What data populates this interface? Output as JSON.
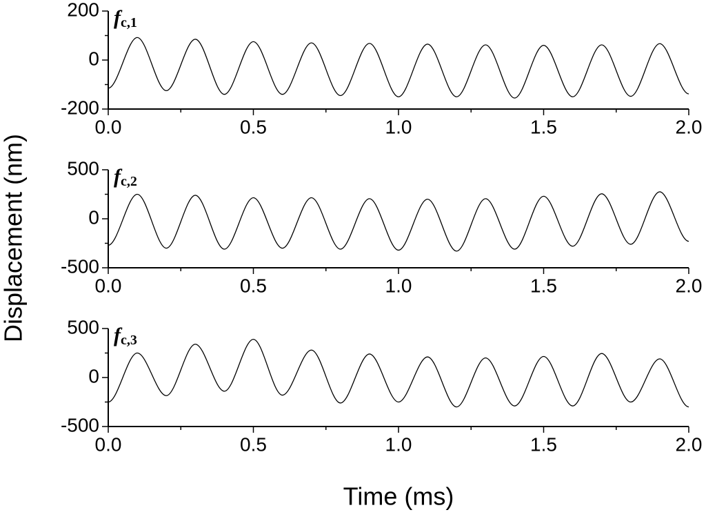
{
  "ylabel": "Displacement (nm)",
  "xlabel": "Time (ms)",
  "chart_data": [
    {
      "type": "line",
      "annotation": {
        "text": "f",
        "subscript": "c,1"
      },
      "x": [
        0,
        0.1,
        0.2,
        0.3,
        0.4,
        0.5,
        0.6,
        0.7,
        0.8,
        0.9,
        1.0,
        1.1,
        1.2,
        1.3,
        1.4,
        1.5,
        1.6,
        1.7,
        1.8,
        1.9,
        2.0
      ],
      "series": [
        {
          "color": "#000000",
          "values": [
            -115,
            92,
            -125,
            85,
            -140,
            75,
            -140,
            70,
            -145,
            68,
            -150,
            65,
            -150,
            62,
            -155,
            60,
            -150,
            62,
            -148,
            67,
            -138
          ]
        }
      ],
      "xlim": [
        0,
        2
      ],
      "xticks": [
        {
          "value": 0,
          "label": "0.0"
        },
        0.5,
        {
          "value": 1,
          "label": "1.0"
        },
        1.5,
        {
          "value": 2,
          "label": "2.0"
        }
      ],
      "ylim": [
        -200,
        200
      ],
      "yticks": [
        -200,
        0,
        200
      ]
    },
    {
      "type": "line",
      "annotation": {
        "text": "f",
        "subscript": "c,2"
      },
      "x": [
        0,
        0.1,
        0.2,
        0.3,
        0.4,
        0.5,
        0.6,
        0.7,
        0.8,
        0.9,
        1.0,
        1.1,
        1.2,
        1.3,
        1.4,
        1.5,
        1.6,
        1.7,
        1.8,
        1.9,
        2.0
      ],
      "series": [
        {
          "color": "#000000",
          "values": [
            -270,
            250,
            -300,
            240,
            -310,
            215,
            -300,
            215,
            -310,
            205,
            -320,
            200,
            -330,
            205,
            -310,
            230,
            -280,
            255,
            -260,
            275,
            -230
          ]
        }
      ],
      "xlim": [
        0,
        2
      ],
      "xticks": [
        {
          "value": 0,
          "label": "0.0"
        },
        0.5,
        {
          "value": 1,
          "label": "1.0"
        },
        1.5,
        {
          "value": 2,
          "label": "2.0"
        }
      ],
      "ylim": [
        -500,
        500
      ],
      "yticks": [
        -500,
        0,
        500
      ]
    },
    {
      "type": "line",
      "annotation": {
        "text": "f",
        "subscript": "c,3"
      },
      "x": [
        0,
        0.1,
        0.2,
        0.3,
        0.4,
        0.5,
        0.6,
        0.7,
        0.8,
        0.9,
        1.0,
        1.1,
        1.2,
        1.3,
        1.4,
        1.5,
        1.6,
        1.7,
        1.8,
        1.9,
        2.0
      ],
      "series": [
        {
          "color": "#000000",
          "values": [
            -250,
            250,
            -185,
            340,
            -140,
            390,
            -180,
            280,
            -260,
            240,
            -250,
            210,
            -300,
            200,
            -290,
            215,
            -290,
            245,
            -250,
            190,
            -300
          ]
        }
      ],
      "xlim": [
        0,
        2
      ],
      "xticks": [
        {
          "value": 0,
          "label": "0.0"
        },
        0.5,
        {
          "value": 1,
          "label": "1.0"
        },
        1.5,
        {
          "value": 2,
          "label": "2.0"
        }
      ],
      "ylim": [
        -500,
        500
      ],
      "yticks": [
        -500,
        0,
        500
      ]
    }
  ]
}
